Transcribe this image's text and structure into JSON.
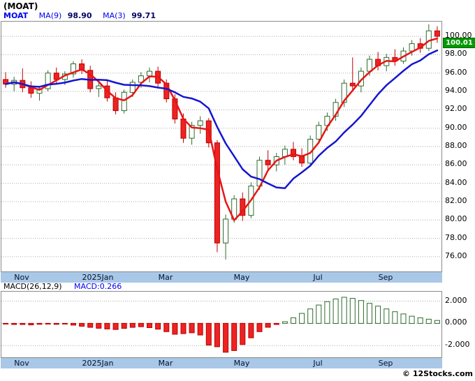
{
  "window": {
    "title": "(MOAT)"
  },
  "legend": {
    "symbol": "MOAT",
    "ma9_label": "MA(9)",
    "ma9_value": "98.90",
    "ma3_label": "MA(3)",
    "ma3_value": "99.71"
  },
  "price_badge": "100.01",
  "macd_panel": {
    "name": "MACD(26,12,9)",
    "value_label": "MACD:0.266"
  },
  "footer": {
    "credit": "© 12Stocks.com"
  },
  "colors": {
    "up_fill": "#ffffff",
    "up_stroke": "#2d6a2d",
    "down_fill": "#ee2222",
    "down_stroke": "#bb0000",
    "ma3_line": "#e81515",
    "ma9_line": "#1515d0",
    "axis_strip_bg": "#a9c7e7",
    "badge_bg": "#009a00",
    "grid": "#aaaaaa",
    "macd_up_stroke": "#2d6a2d"
  },
  "chart_data": [
    {
      "type": "candlestick",
      "symbol": "MOAT",
      "interval": "weekly",
      "title": "(MOAT)",
      "ylim": [
        74.4,
        101.6
      ],
      "y_ticks": [
        100,
        98,
        96,
        94,
        92,
        90,
        88,
        86,
        84,
        82,
        80,
        78,
        76
      ],
      "tick_decimals": 2,
      "last_price": 100.01,
      "x_labels": [
        {
          "label": "Nov",
          "index": 2
        },
        {
          "label": "2025Jan",
          "index": 11
        },
        {
          "label": "Mar",
          "index": 19
        },
        {
          "label": "May",
          "index": 28
        },
        {
          "label": "Jul",
          "index": 37
        },
        {
          "label": "Sep",
          "index": 45
        }
      ],
      "overlays": [
        {
          "name": "MA(3)",
          "period": 3,
          "color": "#e81515",
          "last_value": 99.71
        },
        {
          "name": "MA(9)",
          "period": 9,
          "color": "#1515d0",
          "last_value": 98.9
        }
      ],
      "candles": [
        [
          95.3,
          96.1,
          94.4,
          94.8
        ],
        [
          94.8,
          95.6,
          94.0,
          95.2
        ],
        [
          95.2,
          96.5,
          93.9,
          94.4
        ],
        [
          94.4,
          95.1,
          93.3,
          93.8
        ],
        [
          93.8,
          94.6,
          93.0,
          94.3
        ],
        [
          94.3,
          96.3,
          94.0,
          96.0
        ],
        [
          96.0,
          96.6,
          94.9,
          95.3
        ],
        [
          95.3,
          96.2,
          94.7,
          95.9
        ],
        [
          95.9,
          97.3,
          95.5,
          97.0
        ],
        [
          97.0,
          97.5,
          95.9,
          96.3
        ],
        [
          96.3,
          96.8,
          93.9,
          94.3
        ],
        [
          94.3,
          95.0,
          93.4,
          94.6
        ],
        [
          94.6,
          95.2,
          92.9,
          93.3
        ],
        [
          93.3,
          93.9,
          91.5,
          91.9
        ],
        [
          91.9,
          94.2,
          91.6,
          93.9
        ],
        [
          93.9,
          95.3,
          93.4,
          95.0
        ],
        [
          95.0,
          96.1,
          94.4,
          95.7
        ],
        [
          95.7,
          96.6,
          95.0,
          96.2
        ],
        [
          96.2,
          96.7,
          94.5,
          94.9
        ],
        [
          94.9,
          95.3,
          92.8,
          93.2
        ],
        [
          93.2,
          93.7,
          90.5,
          91.0
        ],
        [
          91.0,
          91.6,
          88.4,
          88.9
        ],
        [
          88.9,
          90.7,
          88.2,
          90.3
        ],
        [
          90.3,
          91.3,
          89.4,
          90.8
        ],
        [
          90.8,
          91.1,
          87.9,
          88.4
        ],
        [
          88.4,
          88.7,
          76.5,
          77.5
        ],
        [
          77.5,
          80.6,
          75.7,
          80.1
        ],
        [
          80.1,
          82.7,
          79.7,
          82.3
        ],
        [
          82.3,
          83.0,
          79.9,
          80.5
        ],
        [
          80.5,
          84.1,
          80.2,
          83.7
        ],
        [
          83.7,
          86.9,
          83.3,
          86.5
        ],
        [
          86.5,
          87.6,
          85.5,
          86.0
        ],
        [
          86.0,
          87.3,
          85.3,
          86.9
        ],
        [
          86.9,
          88.1,
          86.0,
          87.7
        ],
        [
          87.7,
          88.5,
          86.5,
          86.9
        ],
        [
          86.9,
          87.8,
          85.8,
          86.2
        ],
        [
          86.2,
          89.2,
          86.0,
          88.8
        ],
        [
          88.8,
          90.7,
          88.4,
          90.3
        ],
        [
          90.3,
          91.7,
          89.7,
          91.3
        ],
        [
          91.3,
          93.2,
          90.8,
          92.8
        ],
        [
          92.8,
          95.3,
          92.3,
          94.9
        ],
        [
          94.9,
          97.7,
          94.2,
          94.6
        ],
        [
          94.6,
          96.6,
          93.9,
          96.2
        ],
        [
          96.2,
          97.9,
          95.7,
          97.5
        ],
        [
          97.5,
          98.3,
          96.3,
          96.8
        ],
        [
          96.8,
          98.1,
          96.2,
          97.7
        ],
        [
          97.7,
          98.6,
          96.8,
          97.3
        ],
        [
          97.3,
          98.8,
          97.0,
          98.4
        ],
        [
          98.4,
          99.6,
          97.9,
          99.2
        ],
        [
          99.2,
          99.8,
          98.2,
          98.7
        ],
        [
          98.7,
          101.3,
          98.4,
          100.6
        ],
        [
          100.6,
          101.1,
          99.3,
          100.01
        ]
      ]
    },
    {
      "type": "bar",
      "name": "MACD(26,12,9)",
      "last_value": 0.266,
      "ylim": [
        -3.05,
        2.85
      ],
      "y_ticks": [
        2,
        0,
        -2
      ],
      "tick_decimals": 3,
      "values": [
        -0.06,
        -0.1,
        -0.1,
        -0.14,
        -0.08,
        -0.05,
        -0.09,
        -0.06,
        -0.16,
        -0.26,
        -0.36,
        -0.44,
        -0.5,
        -0.55,
        -0.45,
        -0.36,
        -0.3,
        -0.38,
        -0.52,
        -0.75,
        -0.98,
        -0.92,
        -0.85,
        -1.05,
        -1.95,
        -2.1,
        -2.6,
        -2.45,
        -1.9,
        -1.3,
        -0.75,
        -0.35,
        -0.1,
        0.15,
        0.5,
        0.9,
        1.3,
        1.65,
        1.95,
        2.2,
        2.35,
        2.25,
        2.05,
        1.8,
        1.55,
        1.3,
        1.05,
        0.85,
        0.65,
        0.5,
        0.38,
        0.266
      ]
    }
  ]
}
